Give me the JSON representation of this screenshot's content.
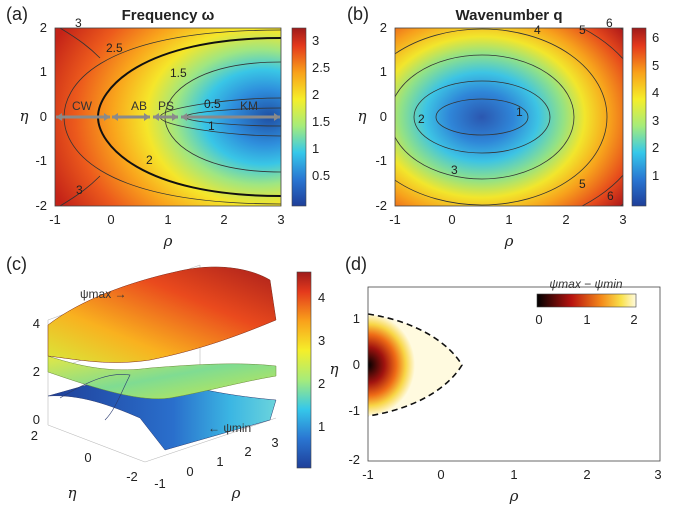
{
  "chart_data": [
    {
      "panel_label": "(a)",
      "type": "heatmap",
      "title": "Frequency ω",
      "xlabel": "ρ",
      "ylabel": "η",
      "xlim": [
        -1,
        3
      ],
      "ylim": [
        -2,
        2
      ],
      "x_ticks": [
        "-1",
        "0",
        "1",
        "2",
        "3"
      ],
      "y_ticks": [
        "2",
        "1",
        "0",
        "-1",
        "-2"
      ],
      "colorbar": {
        "min": 0,
        "max": 3.3,
        "ticks": [
          "3",
          "2.5",
          "2",
          "1.5",
          "1",
          "0.5"
        ]
      },
      "contour_labels": [
        "3",
        "2.5",
        "1.5",
        "0.5",
        "1",
        "2",
        "3"
      ],
      "regions": [
        "CW",
        "AB",
        "PS",
        "KM"
      ]
    },
    {
      "panel_label": "(b)",
      "type": "heatmap",
      "title": "Wavenumber q",
      "xlabel": "ρ",
      "ylabel": "η",
      "xlim": [
        -1,
        3
      ],
      "ylim": [
        -2,
        2
      ],
      "x_ticks": [
        "-1",
        "0",
        "1",
        "2",
        "3"
      ],
      "y_ticks": [
        "2",
        "1",
        "0",
        "-1",
        "-2"
      ],
      "colorbar": {
        "min": 0,
        "max": 6.5,
        "ticks": [
          "6",
          "5",
          "4",
          "3",
          "2",
          "1"
        ]
      },
      "contour_labels": [
        "4",
        "5",
        "6",
        "2",
        "1",
        "3",
        "5",
        "6"
      ]
    },
    {
      "panel_label": "(c)",
      "type": "surface",
      "xlabel": "ρ",
      "ylabel": "η",
      "x_ticks": [
        "-1",
        "0",
        "1",
        "2",
        "3"
      ],
      "y_ticks": [
        "2",
        "0",
        "-2"
      ],
      "z_ticks": [
        "4",
        "2",
        "0"
      ],
      "annotations": [
        "ψmax →",
        "← ψmin"
      ],
      "colorbar": {
        "min": 0,
        "max": 4.6,
        "ticks": [
          "4",
          "3",
          "2",
          "1"
        ]
      }
    },
    {
      "panel_label": "(d)",
      "type": "heatmap",
      "xlabel": "ρ",
      "ylabel": "η",
      "xlim": [
        -1,
        3
      ],
      "ylim": [
        -2,
        1.5
      ],
      "x_ticks": [
        "-1",
        "0",
        "1",
        "2",
        "3"
      ],
      "y_ticks": [
        "1",
        "0",
        "-1",
        "-2"
      ],
      "colorbar": {
        "title": "ψmax − ψmin",
        "min": 0,
        "max": 2,
        "ticks": [
          "0",
          "1",
          "2"
        ]
      }
    }
  ]
}
